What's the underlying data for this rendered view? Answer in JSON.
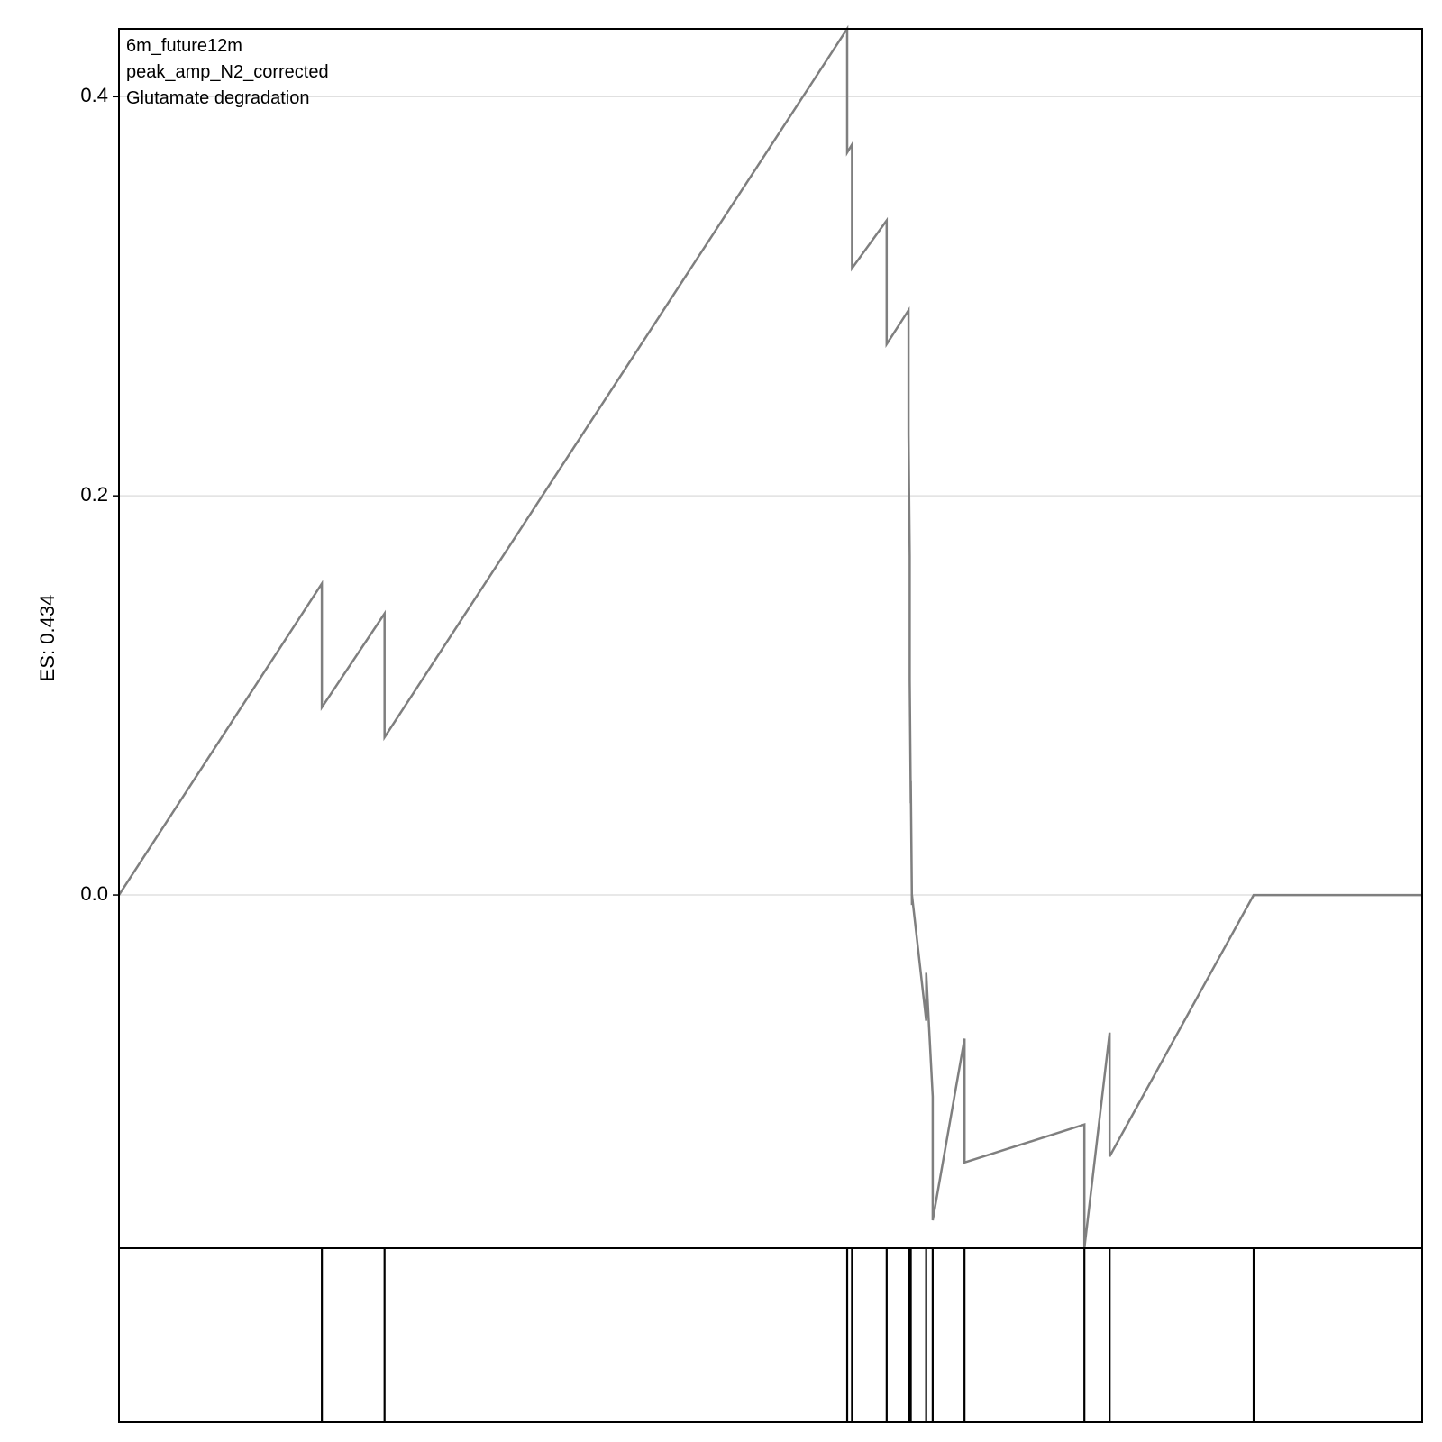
{
  "chart_data": {
    "type": "line",
    "annotations": [
      "6m_future12m",
      "peak_amp_N2_corrected",
      "Glutamate degradation"
    ],
    "ylabel": "ES: 0.434",
    "ylim": [
      -0.177,
      0.434
    ],
    "xlim": [
      0,
      1
    ],
    "yticks": [
      0.0,
      0.2,
      0.4
    ],
    "ytick_labels": [
      "0.0",
      "0.2",
      "0.4"
    ],
    "grid": true,
    "line_color": "#7f7f7f",
    "es_curve": {
      "x": [
        0,
        0.1557,
        0.1557,
        0.2038,
        0.2038,
        0.5588,
        0.5588,
        0.5625,
        0.5625,
        0.5891,
        0.5891,
        0.6059,
        0.6059,
        0.6068,
        0.6068,
        0.6076,
        0.6076,
        0.6085,
        0.6085,
        0.6194,
        0.6194,
        0.6244,
        0.6244,
        0.6488,
        0.6488,
        0.7408,
        0.7408,
        0.7602,
        0.7602,
        0.8707,
        0.8707,
        1.0
      ],
      "y": [
        0.0,
        0.156,
        0.094,
        0.141,
        0.079,
        0.434,
        0.372,
        0.376,
        0.314,
        0.338,
        0.276,
        0.293,
        0.231,
        0.17,
        0.108,
        0.046,
        0.057,
        -0.005,
        0.0,
        -0.063,
        -0.039,
        -0.101,
        -0.163,
        -0.072,
        -0.134,
        -0.115,
        -0.177,
        -0.069,
        -0.131,
        0.0,
        0.0,
        0.0
      ]
    },
    "hits": [
      0.1557,
      0.2038,
      0.5588,
      0.5625,
      0.5891,
      0.6059,
      0.6068,
      0.6076,
      0.6194,
      0.6244,
      0.6488,
      0.7408,
      0.7602,
      0.8707
    ]
  }
}
